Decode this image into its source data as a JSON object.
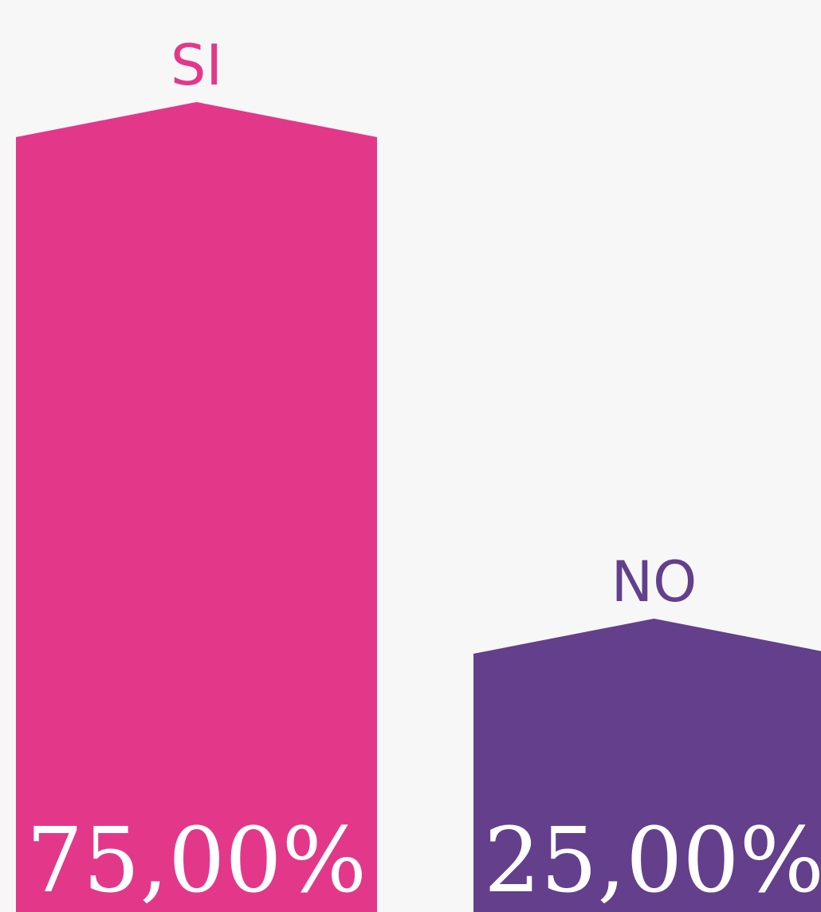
{
  "chart_data": {
    "type": "bar",
    "categories": [
      "SI",
      "NO"
    ],
    "values": [
      75,
      25
    ],
    "value_labels": [
      "75,00%",
      "25,00%"
    ],
    "colors": [
      "#e3388a",
      "#633f8c"
    ]
  }
}
